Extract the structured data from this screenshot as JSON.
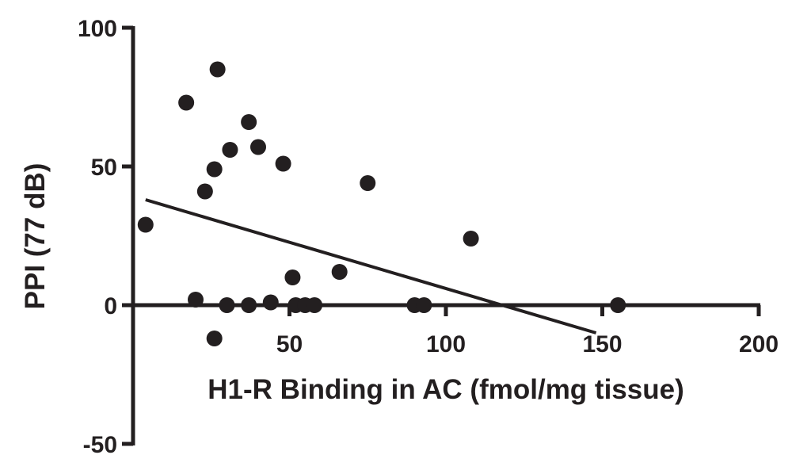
{
  "chart_data": {
    "type": "scatter",
    "xlabel": "H1-R Binding in AC (fmol/mg tissue)",
    "ylabel": "PPI (77 dB)",
    "xlim": [
      0,
      200
    ],
    "ylim": [
      -50,
      100
    ],
    "x_ticks": [
      50,
      100,
      150,
      200
    ],
    "y_ticks": [
      100,
      50,
      0,
      -50
    ],
    "x_tick_labels": [
      "50",
      "100",
      "150",
      "200"
    ],
    "y_tick_labels": [
      "100",
      "50",
      "0",
      "-50"
    ],
    "series": [
      {
        "points": [
          {
            "x": 4,
            "y": 29
          },
          {
            "x": 17,
            "y": 73
          },
          {
            "x": 20,
            "y": 2
          },
          {
            "x": 23,
            "y": 41
          },
          {
            "x": 26,
            "y": 49
          },
          {
            "x": 26,
            "y": -12
          },
          {
            "x": 27,
            "y": 85
          },
          {
            "x": 30,
            "y": 0
          },
          {
            "x": 31,
            "y": 56
          },
          {
            "x": 37,
            "y": 66
          },
          {
            "x": 37,
            "y": 0
          },
          {
            "x": 40,
            "y": 57
          },
          {
            "x": 44,
            "y": 1
          },
          {
            "x": 48,
            "y": 51
          },
          {
            "x": 51,
            "y": 10
          },
          {
            "x": 52,
            "y": 0
          },
          {
            "x": 55,
            "y": 0
          },
          {
            "x": 58,
            "y": 0
          },
          {
            "x": 66,
            "y": 12
          },
          {
            "x": 75,
            "y": 44
          },
          {
            "x": 90,
            "y": 0
          },
          {
            "x": 93,
            "y": 0
          },
          {
            "x": 108,
            "y": 24
          },
          {
            "x": 155,
            "y": 0
          }
        ]
      }
    ],
    "fit_line": {
      "x": [
        4,
        148
      ],
      "y": [
        38,
        -10
      ]
    }
  }
}
